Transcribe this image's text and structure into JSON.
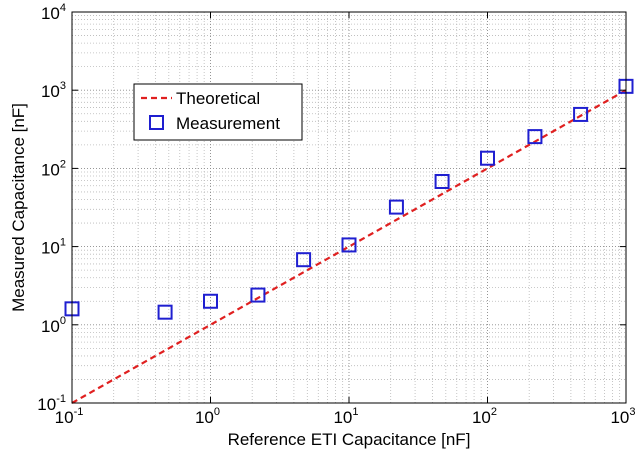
{
  "chart_data": {
    "type": "scatter",
    "xlabel": "Reference ETI Capacitance [nF]",
    "ylabel": "Measured Capacitance [nF]",
    "x_scale": "log",
    "y_scale": "log",
    "xlim": [
      0.1,
      1000
    ],
    "ylim": [
      0.1,
      10000
    ],
    "x_ticks": [
      0.1,
      1,
      10,
      100,
      1000
    ],
    "y_ticks": [
      0.1,
      1,
      10,
      100,
      1000,
      10000
    ],
    "tick_base": "10",
    "x_tick_exponents": [
      "-1",
      "0",
      "1",
      "2",
      "3"
    ],
    "y_tick_exponents": [
      "-1",
      "0",
      "1",
      "2",
      "3",
      "4"
    ],
    "grid": true,
    "legend_position": "upper-left",
    "series": [
      {
        "name": "Theoretical",
        "kind": "line",
        "style": "dashed",
        "color": "#e02020",
        "x": [
          0.1,
          1000
        ],
        "y": [
          0.1,
          1000
        ]
      },
      {
        "name": "Measurement",
        "kind": "marker",
        "marker": "square",
        "color": "#1f1fd0",
        "x": [
          0.1,
          0.47,
          1.0,
          2.2,
          4.7,
          10,
          22,
          47,
          100,
          220,
          470,
          1000
        ],
        "y": [
          1.6,
          1.45,
          2.0,
          2.4,
          6.8,
          10.5,
          32,
          68,
          135,
          255,
          490,
          1120
        ]
      }
    ]
  }
}
